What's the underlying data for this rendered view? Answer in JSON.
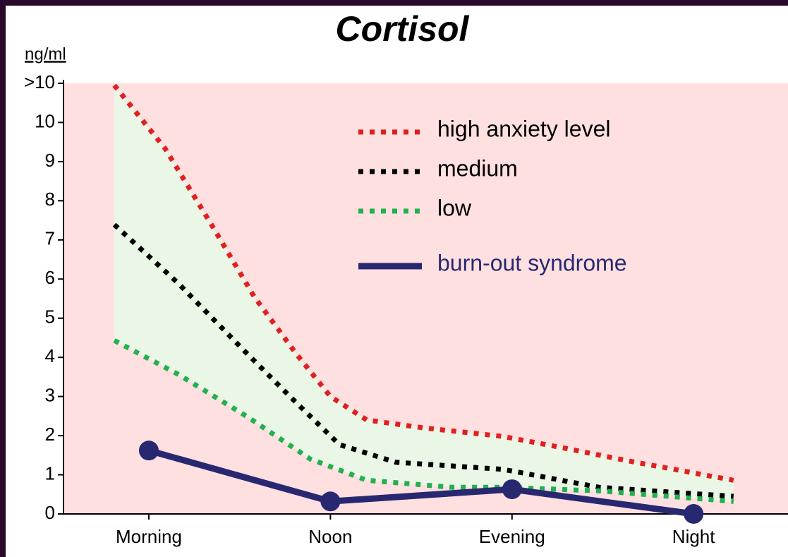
{
  "chart_data": {
    "type": "line",
    "title": "Cortisol",
    "y_label": "ng/ml",
    "xlim": [
      -0.47,
      3.52
    ],
    "xticks": [
      {
        "value": 0,
        "label": "Morning"
      },
      {
        "value": 1,
        "label": "Noon"
      },
      {
        "value": 2,
        "label": "Evening"
      },
      {
        "value": 3,
        "label": "Night"
      }
    ],
    "ylim": [
      0,
      11
    ],
    "yticks": [
      0,
      1,
      2,
      3,
      4,
      5,
      6,
      7,
      8,
      9,
      10,
      {
        "value": 11,
        "label": ">10"
      }
    ],
    "legend": "upper right",
    "series": [
      {
        "name": "high anxiety level",
        "color": "#e02020",
        "style": "dotted",
        "x": [
          -0.19,
          0.09,
          0.35,
          0.58,
          0.81,
          1.0,
          1.2,
          1.51,
          1.95,
          2.29,
          2.68,
          3.22
        ],
        "values": [
          10.95,
          9.33,
          7.35,
          5.55,
          4.1,
          3.0,
          2.4,
          2.2,
          1.98,
          1.68,
          1.32,
          0.86
        ]
      },
      {
        "name": "medium",
        "color": "#000000",
        "style": "dotted",
        "x": [
          -0.19,
          0.16,
          0.54,
          0.81,
          1.05,
          1.36,
          1.95,
          2.48,
          3.22
        ],
        "values": [
          7.39,
          5.9,
          4.1,
          2.85,
          1.77,
          1.32,
          1.14,
          0.68,
          0.45
        ]
      },
      {
        "name": "low",
        "color": "#22b050",
        "style": "dotted",
        "x": [
          -0.19,
          0.16,
          0.54,
          0.89,
          1.2,
          1.67,
          1.95,
          2.48,
          3.22
        ],
        "values": [
          4.43,
          3.57,
          2.49,
          1.4,
          0.86,
          0.68,
          0.68,
          0.59,
          0.32
        ]
      },
      {
        "name": "burn-out syndrome",
        "color": "#282870",
        "style": "solid",
        "x": [
          0,
          1,
          2,
          3
        ],
        "values": [
          1.62,
          0.32,
          0.63,
          0
        ]
      }
    ]
  }
}
